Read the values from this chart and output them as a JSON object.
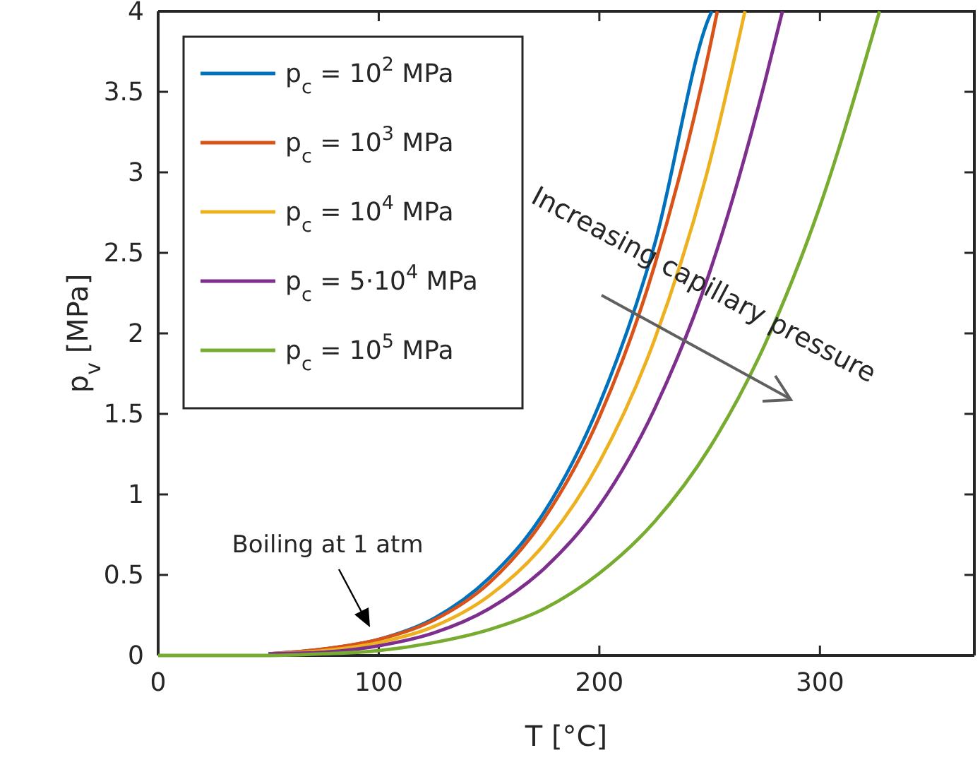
{
  "chart_data": {
    "type": "line",
    "xlabel": "T [°C]",
    "ylabel": "p$_{v}$ [MPa]",
    "xlim": [
      0,
      370
    ],
    "xticks": [
      0,
      100,
      200,
      300
    ],
    "ylim": [
      0,
      4
    ],
    "yticks": [
      0,
      0.5,
      1,
      1.5,
      2,
      2.5,
      3,
      3.5,
      4
    ],
    "grid": false,
    "legend": "top left",
    "line_style": "solid",
    "marker": "none",
    "annotations": [
      "Boiling at 1 atm",
      "Increasing capillary pressure"
    ],
    "series": [
      {
        "name": "p$_{c}$ = 10$^{2}$ MPa",
        "color": "#0072bd",
        "x": [
          50,
          75,
          100,
          125,
          150,
          175,
          200,
          225,
          250,
          251
        ],
        "values": [
          0.01,
          0.04,
          0.1,
          0.23,
          0.48,
          0.89,
          1.56,
          2.55,
          3.97,
          4.0
        ]
      },
      {
        "name": "p$_{c}$ = 10$^{3}$ MPa",
        "color": "#d95319",
        "x": [
          50,
          75,
          100,
          125,
          150,
          175,
          200,
          225,
          250,
          253.5
        ],
        "values": [
          0.01,
          0.04,
          0.1,
          0.22,
          0.45,
          0.85,
          1.48,
          2.42,
          3.77,
          4.0
        ]
      },
      {
        "name": "p$_{c}$ = 10$^{4}$ MPa",
        "color": "#edb120",
        "x": [
          50,
          75,
          100,
          125,
          150,
          175,
          200,
          225,
          250,
          266
        ],
        "values": [
          0.01,
          0.03,
          0.08,
          0.18,
          0.37,
          0.69,
          1.2,
          1.96,
          3.06,
          4.0
        ]
      },
      {
        "name": "p$_{c}$ = 5·10$^{4}$ MPa",
        "color": "#7e2f8e",
        "x": [
          50,
          75,
          100,
          125,
          150,
          175,
          200,
          225,
          250,
          275,
          283
        ],
        "values": [
          0.01,
          0.02,
          0.06,
          0.14,
          0.29,
          0.54,
          0.93,
          1.53,
          2.38,
          3.56,
          4.0
        ]
      },
      {
        "name": "p$_{c}$ = 10$^{5}$ MPa",
        "color": "#77ac30",
        "x": [
          0,
          25,
          50,
          75,
          100,
          125,
          150,
          175,
          200,
          225,
          250,
          275,
          300,
          327
        ],
        "values": [
          0,
          0,
          0,
          0.01,
          0.03,
          0.08,
          0.16,
          0.29,
          0.51,
          0.83,
          1.29,
          1.93,
          2.79,
          4.0
        ]
      }
    ]
  }
}
